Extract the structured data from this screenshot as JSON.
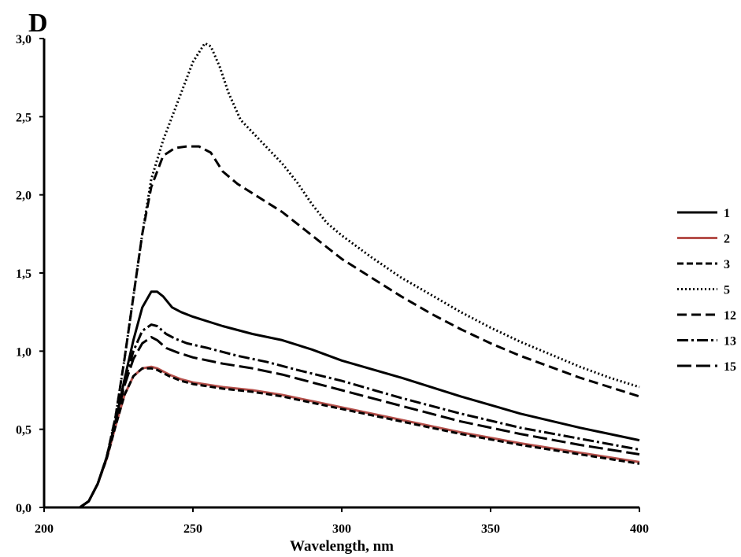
{
  "chart_data": {
    "type": "line",
    "panel_label": "D",
    "title": "",
    "xlabel": "Wavelength, nm",
    "ylabel": "",
    "xlim": [
      200,
      400
    ],
    "ylim": [
      0,
      3.0
    ],
    "x_ticks": [
      200,
      250,
      300,
      350,
      400
    ],
    "x_tick_labels": [
      "200",
      "250",
      "300",
      "350",
      "400"
    ],
    "y_ticks": [
      0,
      0.5,
      1.0,
      1.5,
      2.0,
      2.5,
      3.0
    ],
    "y_tick_labels": [
      "0,0",
      "0,5",
      "1,0",
      "1,5",
      "2,0",
      "2,5",
      "3,0"
    ],
    "grid": false,
    "legend_position": "right",
    "series": [
      {
        "name": "1",
        "color": "#000000",
        "dash": "solid",
        "points": [
          [
            212,
            0
          ],
          [
            215,
            0.04
          ],
          [
            218,
            0.15
          ],
          [
            221,
            0.32
          ],
          [
            224,
            0.55
          ],
          [
            227,
            0.82
          ],
          [
            230,
            1.07
          ],
          [
            233,
            1.28
          ],
          [
            236,
            1.38
          ],
          [
            238,
            1.38
          ],
          [
            240,
            1.35
          ],
          [
            243,
            1.28
          ],
          [
            246,
            1.25
          ],
          [
            250,
            1.22
          ],
          [
            260,
            1.16
          ],
          [
            270,
            1.11
          ],
          [
            280,
            1.07
          ],
          [
            290,
            1.01
          ],
          [
            300,
            0.94
          ],
          [
            320,
            0.83
          ],
          [
            340,
            0.71
          ],
          [
            360,
            0.6
          ],
          [
            380,
            0.51
          ],
          [
            400,
            0.43
          ]
        ]
      },
      {
        "name": "2",
        "color": "#b5504b",
        "dash": "solid",
        "points": [
          [
            212,
            0
          ],
          [
            215,
            0.04
          ],
          [
            218,
            0.15
          ],
          [
            221,
            0.31
          ],
          [
            224,
            0.52
          ],
          [
            227,
            0.72
          ],
          [
            230,
            0.84
          ],
          [
            233,
            0.89
          ],
          [
            236,
            0.9
          ],
          [
            238,
            0.89
          ],
          [
            242,
            0.85
          ],
          [
            246,
            0.82
          ],
          [
            250,
            0.8
          ],
          [
            260,
            0.77
          ],
          [
            270,
            0.75
          ],
          [
            280,
            0.72
          ],
          [
            290,
            0.68
          ],
          [
            300,
            0.64
          ],
          [
            320,
            0.56
          ],
          [
            340,
            0.48
          ],
          [
            360,
            0.41
          ],
          [
            380,
            0.35
          ],
          [
            400,
            0.29
          ]
        ]
      },
      {
        "name": "3",
        "color": "#000000",
        "dash": "8,4",
        "points": [
          [
            212,
            0
          ],
          [
            215,
            0.04
          ],
          [
            218,
            0.15
          ],
          [
            221,
            0.31
          ],
          [
            224,
            0.52
          ],
          [
            227,
            0.72
          ],
          [
            230,
            0.84
          ],
          [
            233,
            0.89
          ],
          [
            236,
            0.89
          ],
          [
            238,
            0.88
          ],
          [
            242,
            0.84
          ],
          [
            246,
            0.81
          ],
          [
            250,
            0.79
          ],
          [
            260,
            0.76
          ],
          [
            270,
            0.74
          ],
          [
            280,
            0.71
          ],
          [
            290,
            0.67
          ],
          [
            300,
            0.63
          ],
          [
            320,
            0.55
          ],
          [
            340,
            0.47
          ],
          [
            360,
            0.4
          ],
          [
            380,
            0.34
          ],
          [
            400,
            0.28
          ]
        ]
      },
      {
        "name": "5",
        "color": "#000000",
        "dash": "2,3",
        "points": [
          [
            212,
            0
          ],
          [
            215,
            0.04
          ],
          [
            218,
            0.15
          ],
          [
            221,
            0.32
          ],
          [
            224,
            0.58
          ],
          [
            227,
            0.95
          ],
          [
            230,
            1.35
          ],
          [
            233,
            1.75
          ],
          [
            236,
            2.1
          ],
          [
            240,
            2.35
          ],
          [
            245,
            2.6
          ],
          [
            250,
            2.85
          ],
          [
            254,
            2.97
          ],
          [
            256,
            2.95
          ],
          [
            259,
            2.82
          ],
          [
            262,
            2.65
          ],
          [
            266,
            2.48
          ],
          [
            270,
            2.4
          ],
          [
            275,
            2.3
          ],
          [
            280,
            2.2
          ],
          [
            285,
            2.08
          ],
          [
            290,
            1.94
          ],
          [
            295,
            1.82
          ],
          [
            300,
            1.74
          ],
          [
            310,
            1.6
          ],
          [
            320,
            1.47
          ],
          [
            330,
            1.36
          ],
          [
            340,
            1.25
          ],
          [
            350,
            1.15
          ],
          [
            360,
            1.06
          ],
          [
            370,
            0.98
          ],
          [
            380,
            0.9
          ],
          [
            390,
            0.83
          ],
          [
            400,
            0.77
          ]
        ]
      },
      {
        "name": "12",
        "color": "#000000",
        "dash": "12,6",
        "points": [
          [
            212,
            0
          ],
          [
            215,
            0.04
          ],
          [
            218,
            0.15
          ],
          [
            221,
            0.32
          ],
          [
            224,
            0.58
          ],
          [
            227,
            0.95
          ],
          [
            230,
            1.35
          ],
          [
            233,
            1.75
          ],
          [
            236,
            2.05
          ],
          [
            240,
            2.25
          ],
          [
            244,
            2.3
          ],
          [
            248,
            2.31
          ],
          [
            252,
            2.31
          ],
          [
            256,
            2.27
          ],
          [
            260,
            2.15
          ],
          [
            265,
            2.07
          ],
          [
            270,
            2.01
          ],
          [
            275,
            1.95
          ],
          [
            280,
            1.89
          ],
          [
            290,
            1.74
          ],
          [
            300,
            1.59
          ],
          [
            310,
            1.47
          ],
          [
            320,
            1.35
          ],
          [
            330,
            1.24
          ],
          [
            340,
            1.14
          ],
          [
            350,
            1.05
          ],
          [
            360,
            0.97
          ],
          [
            370,
            0.9
          ],
          [
            380,
            0.83
          ],
          [
            390,
            0.77
          ],
          [
            400,
            0.71
          ]
        ]
      },
      {
        "name": "13",
        "color": "#000000",
        "dash": "14,4,3,4",
        "points": [
          [
            212,
            0
          ],
          [
            215,
            0.04
          ],
          [
            218,
            0.15
          ],
          [
            221,
            0.32
          ],
          [
            224,
            0.55
          ],
          [
            227,
            0.8
          ],
          [
            230,
            1.0
          ],
          [
            233,
            1.13
          ],
          [
            236,
            1.17
          ],
          [
            238,
            1.16
          ],
          [
            241,
            1.11
          ],
          [
            244,
            1.08
          ],
          [
            248,
            1.05
          ],
          [
            255,
            1.02
          ],
          [
            265,
            0.97
          ],
          [
            275,
            0.93
          ],
          [
            285,
            0.88
          ],
          [
            300,
            0.81
          ],
          [
            320,
            0.7
          ],
          [
            340,
            0.6
          ],
          [
            360,
            0.51
          ],
          [
            380,
            0.44
          ],
          [
            400,
            0.37
          ]
        ]
      },
      {
        "name": "15",
        "color": "#000000",
        "dash": "18,6",
        "points": [
          [
            212,
            0
          ],
          [
            215,
            0.04
          ],
          [
            218,
            0.15
          ],
          [
            221,
            0.32
          ],
          [
            224,
            0.55
          ],
          [
            227,
            0.78
          ],
          [
            230,
            0.95
          ],
          [
            233,
            1.05
          ],
          [
            236,
            1.09
          ],
          [
            238,
            1.07
          ],
          [
            241,
            1.02
          ],
          [
            245,
            0.99
          ],
          [
            250,
            0.96
          ],
          [
            260,
            0.92
          ],
          [
            270,
            0.89
          ],
          [
            280,
            0.85
          ],
          [
            290,
            0.8
          ],
          [
            300,
            0.75
          ],
          [
            320,
            0.65
          ],
          [
            340,
            0.55
          ],
          [
            360,
            0.47
          ],
          [
            380,
            0.4
          ],
          [
            400,
            0.34
          ]
        ]
      }
    ]
  }
}
